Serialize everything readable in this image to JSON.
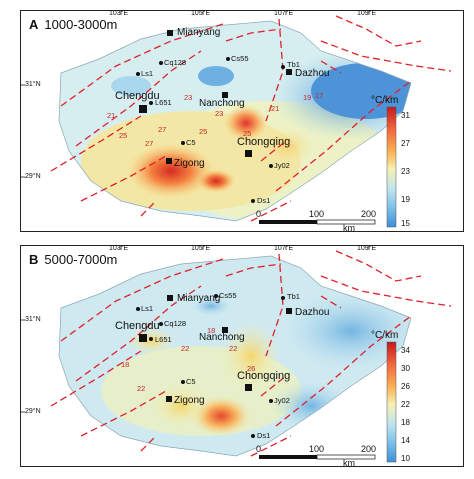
{
  "panels": [
    {
      "id": "A",
      "letter": "A",
      "depth": "1000-3000m",
      "colorbar": {
        "unit": "°C/km",
        "ticks": [
          "31",
          "27",
          "23",
          "19",
          "15"
        ],
        "colors": [
          "#c2191f",
          "#f0643c",
          "#fbb456",
          "#f5f0b4",
          "#bfe6ee",
          "#7cc0e8",
          "#3d8fd6"
        ]
      },
      "contour_labels": [
        "21",
        "25",
        "27",
        "23",
        "25",
        "19",
        "21",
        "17",
        "23",
        "25",
        "27"
      ],
      "cities": [
        "Mianyang",
        "Dazhou",
        "Nanchong",
        "Chengdu",
        "Chongqing",
        "Zigong"
      ],
      "wells": [
        "Ls1",
        "Cq128",
        "Cs55",
        "Tb1",
        "L651",
        "C5",
        "Jy02",
        "Ds1"
      ]
    },
    {
      "id": "B",
      "letter": "B",
      "depth": "5000-7000m",
      "colorbar": {
        "unit": "°C/km",
        "ticks": [
          "34",
          "30",
          "26",
          "22",
          "18",
          "14",
          "10"
        ],
        "colors": [
          "#c2191f",
          "#f0643c",
          "#fbb456",
          "#f5f0b4",
          "#bfe6ee",
          "#7cc0e8",
          "#3d8fd6"
        ]
      },
      "contour_labels": [
        "22",
        "18",
        "22",
        "22",
        "18",
        "26"
      ],
      "cities": [
        "Mianyang",
        "Dazhou",
        "Nanchong",
        "Chengdu",
        "Chongqing",
        "Zigong"
      ],
      "wells": [
        "Ls1",
        "Cq128",
        "Cs55",
        "Tb1",
        "L651",
        "C5",
        "Jy02",
        "Ds1"
      ]
    }
  ],
  "graticule": {
    "lon": [
      "105°E",
      "107°E",
      "109°E",
      "103°E"
    ],
    "lat": [
      "31°N",
      "29°N"
    ]
  },
  "scalebar": {
    "ticks": [
      "0",
      "100",
      "200"
    ],
    "unit": "km"
  }
}
